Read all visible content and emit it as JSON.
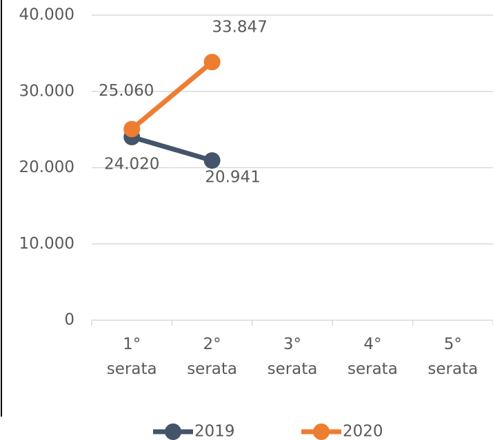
{
  "chart_data": {
    "type": "line",
    "categories": [
      "1° serata",
      "2° serata",
      "3° serata",
      "4° serata",
      "5° serata"
    ],
    "series": [
      {
        "name": "2019",
        "color": "#44546a",
        "values": [
          24020,
          20941,
          null,
          null,
          null
        ],
        "value_labels": [
          "24.020",
          "20.941",
          null,
          null,
          null
        ]
      },
      {
        "name": "2020",
        "color": "#ed7d31",
        "values": [
          25060,
          33847,
          null,
          null,
          null
        ],
        "value_labels": [
          "25.060",
          "33.847",
          null,
          null,
          null
        ]
      }
    ],
    "ylim": [
      0,
      40000
    ],
    "yticks": [
      0,
      {
        "value": 10000,
        "label": "10.000"
      },
      {
        "value": 20000,
        "label": "20.000"
      },
      {
        "value": 30000,
        "label": "30.000"
      },
      {
        "value": 40000,
        "label": "40.000"
      }
    ],
    "grid": true,
    "legend": "bottom"
  }
}
